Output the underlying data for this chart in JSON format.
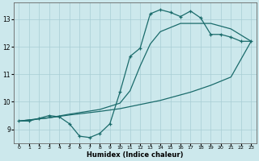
{
  "xlabel": "Humidex (Indice chaleur)",
  "bg_color": "#cce8ec",
  "grid_color": "#a8cdd4",
  "line_color": "#1a6b6b",
  "xlim": [
    -0.5,
    23.5
  ],
  "ylim": [
    8.5,
    13.6
  ],
  "xticks": [
    0,
    1,
    2,
    3,
    4,
    5,
    6,
    7,
    8,
    9,
    10,
    11,
    12,
    13,
    14,
    15,
    16,
    17,
    18,
    19,
    20,
    21,
    22,
    23
  ],
  "yticks": [
    9,
    10,
    11,
    12,
    13
  ],
  "line1_x": [
    0,
    1,
    2,
    3,
    4,
    5,
    6,
    7,
    8,
    9,
    10,
    11,
    12,
    13,
    14,
    15,
    16,
    17,
    18,
    19,
    20,
    21,
    22,
    23
  ],
  "line1_y": [
    9.3,
    9.3,
    9.4,
    9.5,
    9.45,
    9.2,
    8.75,
    8.7,
    8.85,
    9.2,
    10.35,
    11.65,
    11.95,
    13.2,
    13.35,
    13.25,
    13.1,
    13.3,
    13.05,
    12.45,
    12.45,
    12.35,
    12.2,
    12.2
  ],
  "diag_low_x": [
    0,
    3,
    5,
    8,
    10,
    12,
    14,
    17,
    19,
    21,
    23
  ],
  "diag_low_y": [
    9.3,
    9.42,
    9.52,
    9.65,
    9.75,
    9.9,
    10.05,
    10.35,
    10.6,
    10.9,
    12.2
  ],
  "diag_high_x": [
    0,
    3,
    5,
    8,
    10,
    11,
    12,
    13,
    14,
    16,
    19,
    21,
    23
  ],
  "diag_high_y": [
    9.3,
    9.42,
    9.55,
    9.72,
    9.95,
    10.4,
    11.3,
    12.1,
    12.55,
    12.85,
    12.85,
    12.65,
    12.2
  ]
}
